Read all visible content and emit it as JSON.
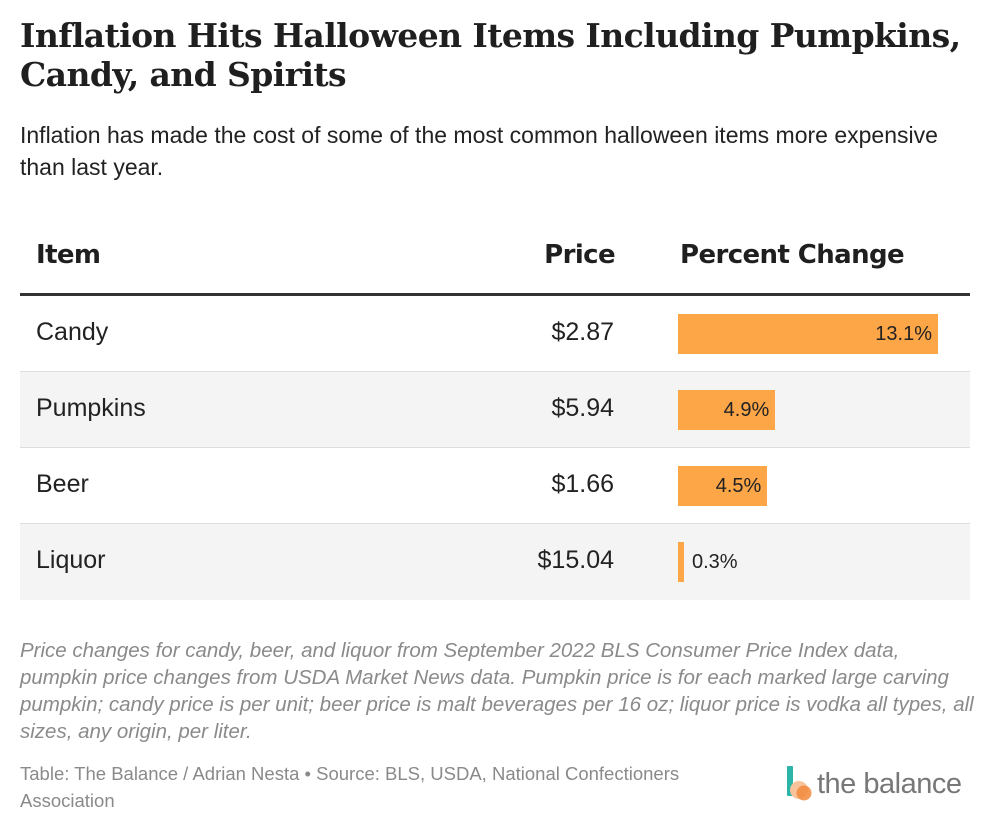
{
  "title": "Inflation Hits Halloween Items Including Pumpkins, Candy, and Spirits",
  "subtitle": "Inflation has made the cost of some of the most common halloween items more expensive than last year.",
  "chart_data": {
    "type": "table",
    "columns": [
      "Item",
      "Price",
      "Percent Change"
    ],
    "rows": [
      {
        "item": "Candy",
        "price": "$2.87",
        "change": 13.1,
        "change_label": "13.1%"
      },
      {
        "item": "Pumpkins",
        "price": "$5.94",
        "change": 4.9,
        "change_label": "4.9%"
      },
      {
        "item": "Beer",
        "price": "$1.66",
        "change": 4.5,
        "change_label": "4.5%"
      },
      {
        "item": "Liquor",
        "price": "$15.04",
        "change": 0.3,
        "change_label": "0.3%"
      }
    ],
    "bar_max": 13.1,
    "bar_color": "#fca648"
  },
  "notes": "Price changes for candy, beer, and liquor from September 2022 BLS Consumer Price Index data, pumpkin price changes from USDA Market News data. Pumpkin price is for each marked large carving pumpkin; candy price is per unit; beer price is malt beverages per 16 oz; liquor price is vodka all types, all sizes, any origin, per liter.",
  "source": "Table: The Balance / Adrian Nesta • Source: BLS, USDA, National Confectioners Association",
  "logo": {
    "text": "the balance",
    "icon": "the-balance-logo-mark"
  },
  "colors": {
    "bar": "#fca648",
    "logo_teal": "#2bb5a8",
    "logo_peach": "#f8c39a",
    "logo_orange": "#f28a3c"
  }
}
